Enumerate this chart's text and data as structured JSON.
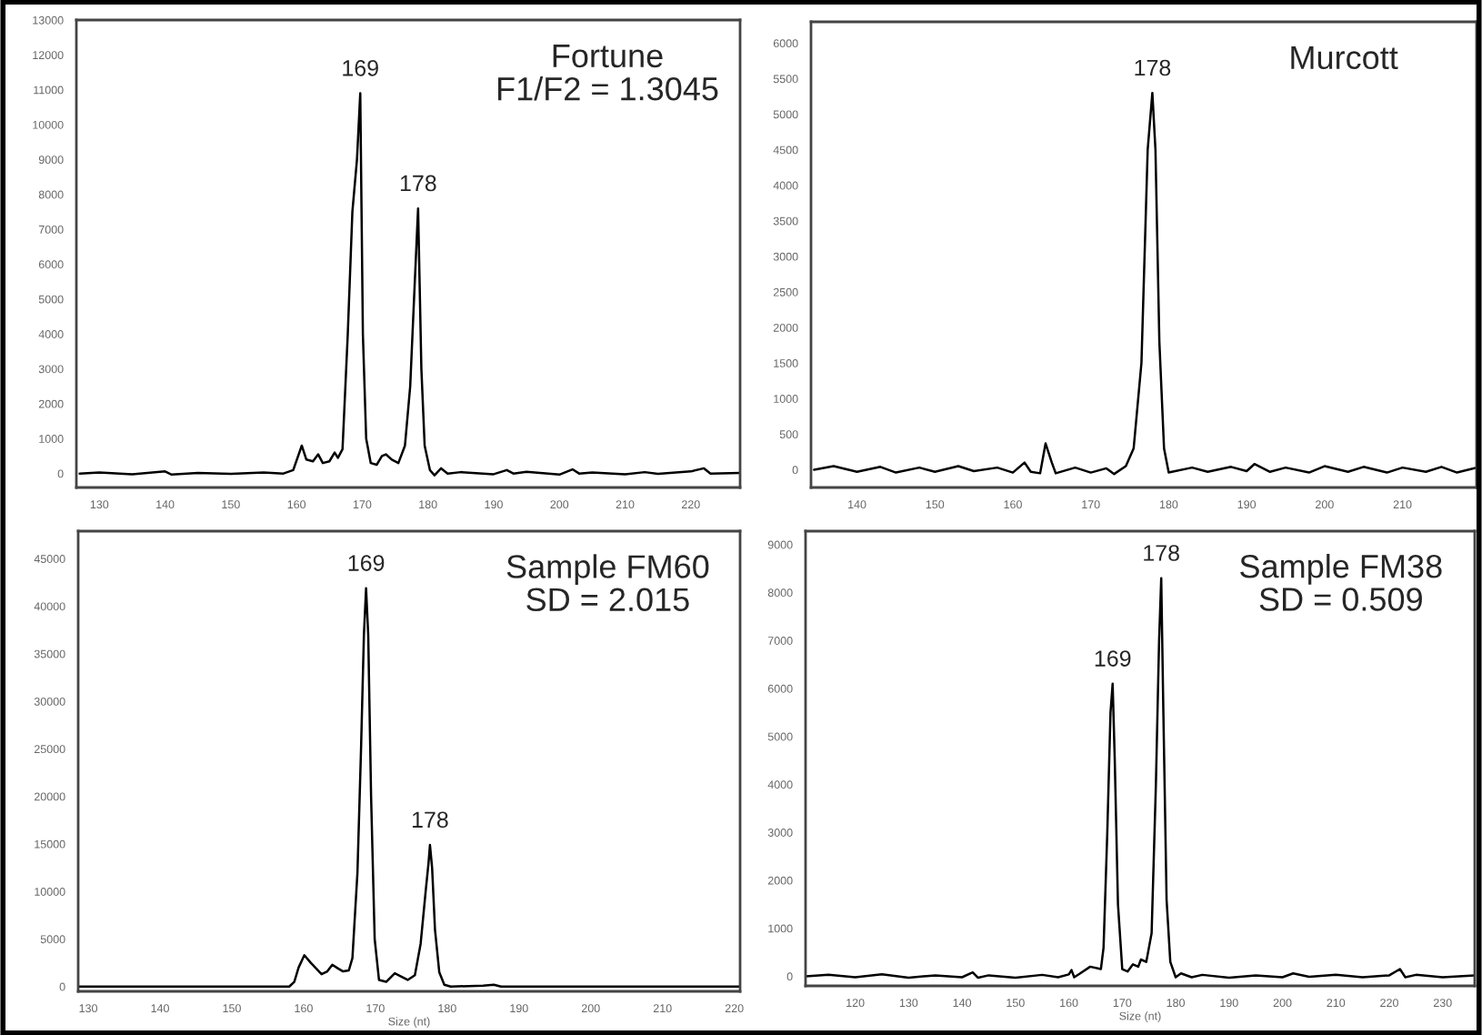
{
  "chart_data": [
    {
      "type": "line",
      "title": "Fortune",
      "subtitle": "F1/F2 = 1.3045",
      "xlim": [
        126.5,
        227.5
      ],
      "ylim": [
        -400,
        13000
      ],
      "xticks": [
        130,
        140,
        150,
        160,
        170,
        180,
        190,
        200,
        210,
        220
      ],
      "yticks": [
        0,
        1000,
        2000,
        3000,
        4000,
        5000,
        6000,
        7000,
        8000,
        9000,
        10000,
        11000,
        12000,
        13000
      ],
      "grid": false,
      "legend": false,
      "line_style": "solid",
      "marker": "none",
      "annotations": [
        {
          "text": "169",
          "x": 169.7,
          "y": 10900
        },
        {
          "text": "178",
          "x": 178.5,
          "y": 7600
        }
      ],
      "series": [
        {
          "color": "#000000",
          "x": [
            127,
            130,
            135,
            140,
            141,
            145,
            150,
            155,
            158,
            159.5,
            160.8,
            161.5,
            162.5,
            163.3,
            164,
            165,
            165.8,
            166.3,
            167,
            167.8,
            168.5,
            169.2,
            169.7,
            170.1,
            170.6,
            171.3,
            172.2,
            173,
            173.6,
            174.5,
            175.5,
            176.5,
            177.3,
            178,
            178.5,
            179,
            179.5,
            180.3,
            181,
            182,
            183,
            185,
            190,
            192,
            193,
            195,
            200,
            202,
            203,
            205,
            210,
            213,
            215,
            220,
            222,
            223,
            227.5
          ],
          "values": [
            0,
            30,
            -20,
            60,
            -30,
            20,
            -10,
            30,
            0,
            100,
            800,
            400,
            350,
            550,
            300,
            350,
            600,
            450,
            700,
            4000,
            7500,
            9000,
            10900,
            4000,
            1000,
            300,
            250,
            500,
            550,
            400,
            300,
            800,
            2500,
            5500,
            7600,
            3000,
            800,
            100,
            -50,
            150,
            0,
            40,
            -20,
            100,
            0,
            50,
            -30,
            120,
            0,
            30,
            -20,
            40,
            -10,
            60,
            150,
            0,
            20
          ]
        }
      ]
    },
    {
      "type": "line",
      "title": "Murcott",
      "xlim": [
        134.1,
        219.5
      ],
      "ylim": [
        -250,
        6300
      ],
      "xticks": [
        140,
        150,
        160,
        170,
        180,
        190,
        200,
        210
      ],
      "yticks": [
        0,
        500,
        1000,
        1500,
        2000,
        2500,
        3000,
        3500,
        4000,
        4500,
        5000,
        5500,
        6000
      ],
      "grid": false,
      "legend": false,
      "line_style": "solid",
      "marker": "none",
      "annotations": [
        {
          "text": "178",
          "x": 177.9,
          "y": 5300
        }
      ],
      "series": [
        {
          "color": "#000000",
          "x": [
            134.5,
            137,
            140,
            143,
            145,
            148,
            150,
            153,
            155,
            158,
            160,
            161.5,
            162.3,
            163.5,
            164.2,
            165,
            165.5,
            168,
            170,
            172,
            173,
            174.5,
            175.5,
            176.5,
            177.3,
            177.9,
            178.3,
            178.8,
            179.4,
            180,
            183,
            185,
            188,
            190,
            191,
            193,
            195,
            198,
            200,
            203,
            205,
            208,
            210,
            213,
            215,
            217,
            219.5
          ],
          "values": [
            0,
            50,
            -30,
            40,
            -40,
            30,
            -30,
            50,
            -20,
            30,
            -40,
            100,
            -30,
            -50,
            370,
            100,
            -50,
            30,
            -40,
            20,
            -60,
            50,
            300,
            1500,
            4500,
            5300,
            4500,
            1800,
            300,
            -40,
            30,
            -30,
            40,
            -20,
            80,
            -30,
            30,
            -40,
            50,
            -30,
            40,
            -40,
            30,
            -30,
            40,
            -40,
            30
          ]
        }
      ]
    },
    {
      "type": "line",
      "title": "Sample FM60",
      "subtitle": "SD = 2.015",
      "xlabel": "Size (nt)",
      "xlim": [
        128.6,
        220.8
      ],
      "ylim": [
        -500,
        47900
      ],
      "xticks": [
        130,
        140,
        150,
        160,
        170,
        180,
        190,
        200,
        210,
        220
      ],
      "yticks": [
        0,
        5000,
        10000,
        15000,
        20000,
        25000,
        30000,
        35000,
        40000,
        45000
      ],
      "grid": false,
      "legend": false,
      "line_style": "solid",
      "marker": "none",
      "annotations": [
        {
          "text": "169",
          "x": 168.7,
          "y": 41900
        },
        {
          "text": "178",
          "x": 177.6,
          "y": 14900
        }
      ],
      "series": [
        {
          "color": "#000000",
          "x": [
            128.6,
            135,
            140,
            150,
            158,
            158.7,
            159.3,
            160.1,
            161,
            162.5,
            163.3,
            164,
            164.8,
            165.5,
            166.3,
            166.8,
            167.5,
            168,
            168.4,
            168.7,
            169,
            169.4,
            169.9,
            170.5,
            171.5,
            172.7,
            173.5,
            174.5,
            175.5,
            176.3,
            177,
            177.4,
            177.6,
            177.9,
            178.3,
            178.9,
            179.6,
            180.5,
            185,
            186.5,
            187.5,
            195,
            220.8
          ],
          "values": [
            0,
            0,
            0,
            0,
            0,
            500,
            2000,
            3300,
            2500,
            1300,
            1600,
            2300,
            1900,
            1600,
            1700,
            3000,
            12000,
            25000,
            37000,
            41900,
            37000,
            20000,
            5000,
            700,
            500,
            1400,
            1100,
            700,
            1200,
            4500,
            10000,
            13000,
            14900,
            12500,
            6000,
            1500,
            200,
            0,
            100,
            200,
            0,
            0,
            0
          ]
        }
      ]
    },
    {
      "type": "line",
      "title": "Sample FM38",
      "subtitle": "SD = 0.509",
      "xlabel": "Size (nt)",
      "xlim": [
        110.7,
        236
      ],
      "ylim": [
        -200,
        9280
      ],
      "xticks": [
        120,
        130,
        140,
        150,
        160,
        170,
        180,
        190,
        200,
        210,
        220,
        230
      ],
      "yticks": [
        0,
        1000,
        2000,
        3000,
        4000,
        5000,
        6000,
        7000,
        8000,
        9000
      ],
      "grid": false,
      "legend": false,
      "line_style": "solid",
      "marker": "none",
      "annotations": [
        {
          "text": "169",
          "x": 168.2,
          "y": 6100
        },
        {
          "text": "178",
          "x": 177.3,
          "y": 8300
        }
      ],
      "series": [
        {
          "color": "#000000",
          "x": [
            110.7,
            115,
            120,
            125,
            130,
            135,
            140,
            142,
            143,
            145,
            150,
            155,
            158,
            160,
            160.5,
            161,
            162,
            164,
            166,
            166.5,
            167.2,
            167.8,
            168.2,
            168.6,
            169.2,
            170,
            171,
            172,
            173,
            173.5,
            174.5,
            175.5,
            176.3,
            176.9,
            177.3,
            177.7,
            178.3,
            179,
            180,
            181,
            183,
            185,
            190,
            195,
            200,
            202,
            205,
            210,
            215,
            220,
            222,
            223,
            225,
            230,
            236
          ],
          "values": [
            0,
            30,
            -20,
            40,
            -30,
            20,
            -20,
            80,
            -30,
            20,
            -30,
            30,
            -20,
            40,
            130,
            -20,
            50,
            200,
            150,
            600,
            3000,
            5500,
            6100,
            4500,
            1500,
            150,
            100,
            250,
            200,
            350,
            300,
            900,
            4000,
            7000,
            8300,
            5500,
            1600,
            300,
            -20,
            60,
            -20,
            30,
            -30,
            20,
            -20,
            60,
            -10,
            30,
            -20,
            20,
            150,
            -20,
            30,
            -20,
            20
          ]
        }
      ]
    }
  ]
}
